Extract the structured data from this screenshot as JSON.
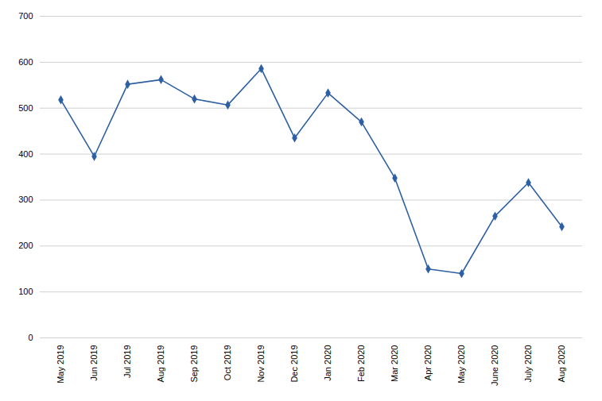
{
  "chart_data": {
    "type": "line",
    "categories": [
      "May 2019",
      "Jun 2019",
      "Jul 2019",
      "Aug 2019",
      "Sep 2019",
      "Oct 2019",
      "Nov 2019",
      "Dec 2019",
      "Jan 2020",
      "Feb 2020",
      "Mar 2020",
      "Apr 2020",
      "May 2020",
      "June 2020",
      "July 2020",
      "Aug 2020"
    ],
    "values": [
      518,
      395,
      552,
      562,
      520,
      507,
      586,
      435,
      533,
      470,
      348,
      150,
      140,
      265,
      338,
      242
    ],
    "color": "#2E5FA3",
    "marker": "diamond",
    "ylim": [
      0,
      700
    ],
    "yticks": [
      0,
      100,
      200,
      300,
      400,
      500,
      600,
      700
    ],
    "grid": true
  }
}
